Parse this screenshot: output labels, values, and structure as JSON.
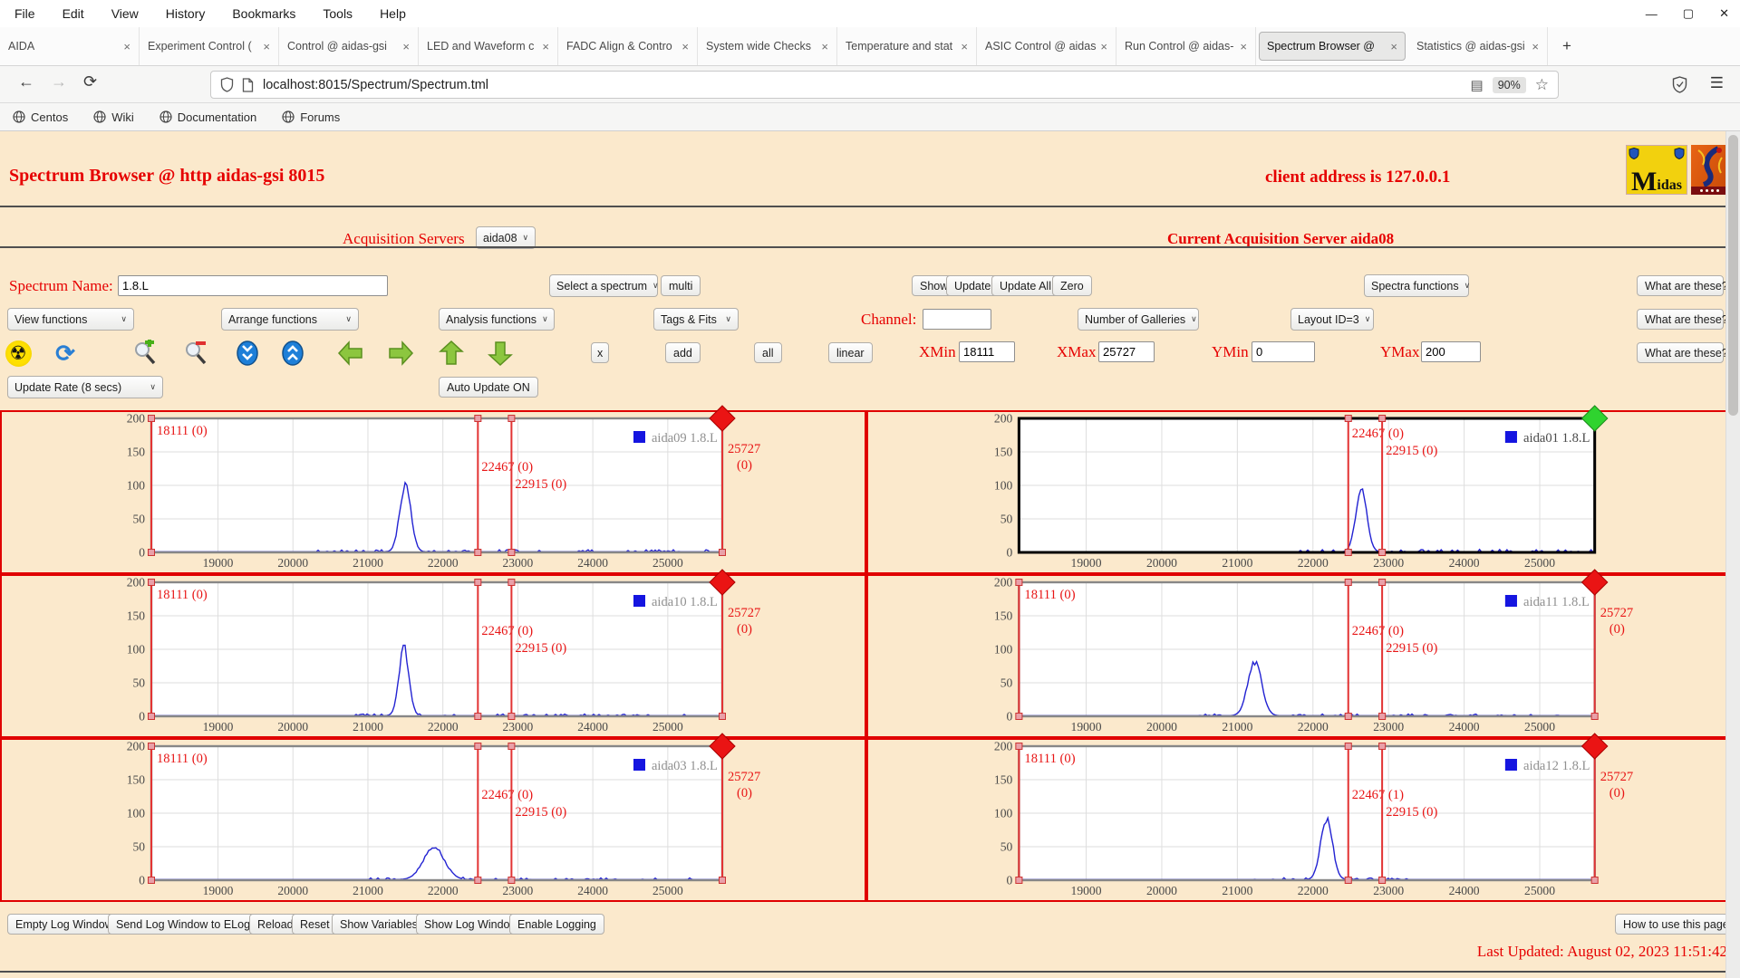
{
  "browser": {
    "menu": [
      "File",
      "Edit",
      "View",
      "History",
      "Bookmarks",
      "Tools",
      "Help"
    ],
    "icons": {
      "minimize": "—",
      "maximize": "▢",
      "close": "✕",
      "back": "←",
      "forward": "→",
      "reload": "⟳",
      "reader": "▤",
      "star": "☆",
      "hamburger": "☰",
      "new_tab": "+",
      "tab_close": "×",
      "radioactive": "☢",
      "refresh": "⟳"
    },
    "tabs": [
      {
        "label": "AIDA"
      },
      {
        "label": "Experiment Control ("
      },
      {
        "label": "Control @ aidas-gsi"
      },
      {
        "label": "LED and Waveform c"
      },
      {
        "label": "FADC Align & Contro"
      },
      {
        "label": "System wide Checks"
      },
      {
        "label": "Temperature and stat"
      },
      {
        "label": "ASIC Control @ aidas"
      },
      {
        "label": "Run Control @ aidas-"
      },
      {
        "label": "Spectrum Browser @"
      },
      {
        "label": "Statistics @ aidas-gsi"
      }
    ],
    "url": "localhost:8015/Spectrum/Spectrum.tml",
    "zoom_badge": "90%",
    "bookmarks": [
      "Centos",
      "Wiki",
      "Documentation",
      "Forums"
    ]
  },
  "logos": {
    "midas_m": "M",
    "midas_rest": "idas"
  },
  "header": {
    "title": "Spectrum Browser @ http aidas-gsi 8015",
    "client": "client address is 127.0.0.1",
    "acq_label": "Acquisition Servers",
    "acq_value": "aida08",
    "current_server": "Current Acquisition Server aida08"
  },
  "controls": {
    "spectrum_name_label": "Spectrum Name:",
    "spectrum_name_value": "1.8.L",
    "select_spectrum": "Select a spectrum",
    "multi": "multi",
    "show": "Show",
    "update": "Update",
    "update_all": "Update All",
    "zero": "Zero",
    "spectra_functions": "Spectra functions",
    "what_are_these": "What are these?",
    "view_functions": "View functions",
    "arrange_functions": "Arrange functions",
    "analysis_functions": "Analysis functions",
    "tags_fits": "Tags & Fits",
    "channel_label": "Channel:",
    "channel_value": "",
    "number_of_galleries": "Number of Galleries",
    "layout_id": "Layout ID=3",
    "x_button": "x",
    "add": "add",
    "all": "all",
    "linear": "linear",
    "xmin_label": "XMin",
    "xmin": "18111",
    "xmax_label": "XMax",
    "xmax": "25727",
    "ymin_label": "YMin",
    "ymin": "0",
    "ymax_label": "YMax",
    "ymax": "200",
    "update_rate": "Update Rate (8 secs)",
    "auto_update": "Auto Update ON"
  },
  "footer": {
    "buttons": [
      "Empty Log Window",
      "Send Log Window to ELog",
      "Reload",
      "Reset",
      "Show Variables",
      "Show Log Window",
      "Enable Logging"
    ],
    "help_button": "How to use this page",
    "last_updated": "Last Updated: August 02, 2023 11:51:42"
  },
  "chart_data": [
    {
      "type": "line",
      "legend": "aida09 1.8.L",
      "legend_text_color": "#909090",
      "series_color": "#2323d2",
      "border_color": "#878787",
      "marker_color": "#ea1414",
      "selected": false,
      "x_range": [
        18111,
        25727
      ],
      "y_range": [
        0,
        200
      ],
      "x_ticks": [
        19000,
        20000,
        21000,
        22000,
        23000,
        24000,
        25000
      ],
      "y_ticks": [
        0,
        50,
        100,
        150,
        200
      ],
      "peak": {
        "center": 21500,
        "height": 102,
        "sigma": 74
      },
      "noise": {
        "from": 20300,
        "to": 25600,
        "amp": 3
      },
      "cursors": [
        {
          "x": 18111,
          "label": "18111 (0)",
          "pos": "tl",
          "label_y": 25
        },
        {
          "x": 22467,
          "label": "22467 (0)",
          "pos": "m",
          "label_y": 65
        },
        {
          "x": 22915,
          "label": "22915 (0)",
          "pos": "m",
          "label_y": 84
        },
        {
          "x": 25727,
          "label": "25727",
          "label2": "(0)",
          "pos": "out",
          "label_y": 45
        }
      ]
    },
    {
      "type": "line",
      "legend": "aida01 1.8.L",
      "legend_text_color": "#4a4a4a",
      "series_color": "#2323d2",
      "border_color": "#000000",
      "marker_color": "#2fd32f",
      "selected": true,
      "x_range": [
        18111,
        25727
      ],
      "y_range": [
        0,
        200
      ],
      "x_ticks": [
        19000,
        20000,
        21000,
        22000,
        23000,
        24000,
        25000
      ],
      "y_ticks": [
        0,
        50,
        100,
        150,
        200
      ],
      "peak": {
        "center": 22640,
        "height": 98,
        "sigma": 72
      },
      "noise": {
        "from": 21650,
        "to": 25700,
        "amp": 3.5
      },
      "cursors": [
        {
          "x": 22467,
          "label": "22467 (0)",
          "pos": "m",
          "label_y": 28
        },
        {
          "x": 22915,
          "label": "22915 (0)",
          "pos": "m",
          "label_y": 47
        }
      ]
    },
    {
      "type": "line",
      "legend": "aida10 1.8.L",
      "legend_text_color": "#909090",
      "series_color": "#2323d2",
      "border_color": "#878787",
      "marker_color": "#ea1414",
      "selected": false,
      "x_range": [
        18111,
        25727
      ],
      "y_range": [
        0,
        200
      ],
      "x_ticks": [
        19000,
        20000,
        21000,
        22000,
        23000,
        24000,
        25000
      ],
      "y_ticks": [
        0,
        50,
        100,
        150,
        200
      ],
      "peak": {
        "center": 21480,
        "height": 102,
        "sigma": 66
      },
      "noise": {
        "from": 20800,
        "to": 25400,
        "amp": 2.5
      },
      "cursors": [
        {
          "x": 18111,
          "label": "18111 (0)",
          "pos": "tl",
          "label_y": 25
        },
        {
          "x": 22467,
          "label": "22467 (0)",
          "pos": "m",
          "label_y": 65
        },
        {
          "x": 22915,
          "label": "22915 (0)",
          "pos": "m",
          "label_y": 84
        },
        {
          "x": 25727,
          "label": "25727",
          "label2": "(0)",
          "pos": "out",
          "label_y": 45
        }
      ]
    },
    {
      "type": "line",
      "legend": "aida11 1.8.L",
      "legend_text_color": "#909090",
      "series_color": "#2323d2",
      "border_color": "#878787",
      "marker_color": "#ea1414",
      "selected": false,
      "x_range": [
        18111,
        25727
      ],
      "y_range": [
        0,
        200
      ],
      "x_ticks": [
        19000,
        20000,
        21000,
        22000,
        23000,
        24000,
        25000
      ],
      "y_ticks": [
        0,
        50,
        100,
        150,
        200
      ],
      "peak": {
        "center": 21230,
        "height": 80,
        "sigma": 92
      },
      "noise": {
        "from": 20400,
        "to": 25400,
        "amp": 2.5
      },
      "cursors": [
        {
          "x": 18111,
          "label": "18111 (0)",
          "pos": "tl",
          "label_y": 25
        },
        {
          "x": 22467,
          "label": "22467 (0)",
          "pos": "m",
          "label_y": 65
        },
        {
          "x": 22915,
          "label": "22915 (0)",
          "pos": "m",
          "label_y": 84
        },
        {
          "x": 25727,
          "label": "25727",
          "label2": "(0)",
          "pos": "out",
          "label_y": 45
        }
      ]
    },
    {
      "type": "line",
      "legend": "aida03 1.8.L",
      "legend_text_color": "#909090",
      "series_color": "#2323d2",
      "border_color": "#878787",
      "marker_color": "#ea1414",
      "selected": false,
      "x_range": [
        18111,
        25727
      ],
      "y_range": [
        0,
        200
      ],
      "x_ticks": [
        19000,
        20000,
        21000,
        22000,
        23000,
        24000,
        25000
      ],
      "y_ticks": [
        0,
        50,
        100,
        150,
        200
      ],
      "peak": {
        "center": 21880,
        "height": 48,
        "sigma": 140
      },
      "noise": {
        "from": 20900,
        "to": 25400,
        "amp": 2.5
      },
      "cursors": [
        {
          "x": 18111,
          "label": "18111 (0)",
          "pos": "tl",
          "label_y": 25
        },
        {
          "x": 22467,
          "label": "22467 (0)",
          "pos": "m",
          "label_y": 65
        },
        {
          "x": 22915,
          "label": "22915 (0)",
          "pos": "m",
          "label_y": 84
        },
        {
          "x": 25727,
          "label": "25727",
          "label2": "(0)",
          "pos": "out",
          "label_y": 45
        }
      ]
    },
    {
      "type": "line",
      "legend": "aida12 1.8.L",
      "legend_text_color": "#909090",
      "series_color": "#2323d2",
      "border_color": "#878787",
      "marker_color": "#ea1414",
      "selected": false,
      "x_range": [
        18111,
        25727
      ],
      "y_range": [
        0,
        200
      ],
      "x_ticks": [
        19000,
        20000,
        21000,
        22000,
        23000,
        24000,
        25000
      ],
      "y_ticks": [
        0,
        50,
        100,
        150,
        200
      ],
      "peak": {
        "center": 22180,
        "height": 90,
        "sigma": 78
      },
      "noise": {
        "from": 21100,
        "to": 23300,
        "amp": 3
      },
      "cursors": [
        {
          "x": 18111,
          "label": "18111 (0)",
          "pos": "tl",
          "label_y": 25
        },
        {
          "x": 22467,
          "label": "22467 (1)",
          "pos": "m",
          "label_y": 65
        },
        {
          "x": 22915,
          "label": "22915 (0)",
          "pos": "m",
          "label_y": 84
        },
        {
          "x": 25727,
          "label": "25727",
          "label2": "(0)",
          "pos": "out",
          "label_y": 45
        }
      ]
    }
  ]
}
